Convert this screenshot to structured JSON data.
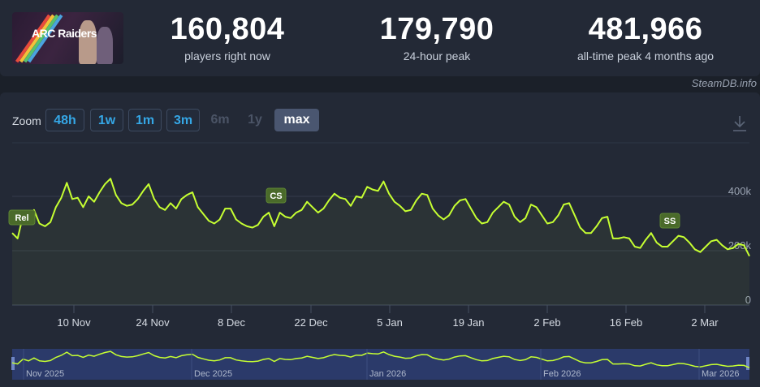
{
  "header": {
    "game_logo_text": "ARC Raiders",
    "stats": [
      {
        "value": "160,804",
        "label": "players right now"
      },
      {
        "value": "179,790",
        "label": "24-hour peak"
      },
      {
        "value": "481,966",
        "label": "all-time peak 4 months ago"
      }
    ],
    "credit": "SteamDB.info"
  },
  "zoom": {
    "label": "Zoom",
    "buttons": [
      {
        "label": "48h",
        "state": "enabled"
      },
      {
        "label": "1w",
        "state": "enabled"
      },
      {
        "label": "1m",
        "state": "enabled"
      },
      {
        "label": "3m",
        "state": "enabled"
      },
      {
        "label": "6m",
        "state": "disabled"
      },
      {
        "label": "1y",
        "state": "disabled"
      },
      {
        "label": "max",
        "state": "selected"
      }
    ],
    "download_icon": "download-icon"
  },
  "chart_data": {
    "type": "line",
    "title": "",
    "xlabel": "",
    "ylabel": "",
    "x_tick_labels": [
      "10 Nov",
      "24 Nov",
      "8 Dec",
      "22 Dec",
      "5 Jan",
      "19 Jan",
      "2 Feb",
      "16 Feb",
      "2 Mar"
    ],
    "y_tick_labels": [
      "0",
      "200k",
      "400k"
    ],
    "ylim": [
      0,
      560000
    ],
    "grid": true,
    "line_color": "#c6ff32",
    "series": [
      {
        "values": [
          265000,
          245000,
          330000,
          300000,
          350000,
          300000,
          290000,
          305000,
          360000,
          395000,
          450000,
          390000,
          395000,
          360000,
          400000,
          380000,
          415000,
          445000,
          465000,
          405000,
          375000,
          365000,
          370000,
          390000,
          420000,
          445000,
          390000,
          360000,
          350000,
          375000,
          355000,
          390000,
          405000,
          415000,
          360000,
          335000,
          310000,
          300000,
          315000,
          355000,
          355000,
          315000,
          300000,
          290000,
          285000,
          295000,
          325000,
          340000,
          290000,
          340000,
          325000,
          320000,
          340000,
          350000,
          380000,
          360000,
          340000,
          355000,
          385000,
          410000,
          395000,
          390000,
          365000,
          400000,
          395000,
          435000,
          425000,
          420000,
          455000,
          410000,
          380000,
          365000,
          345000,
          350000,
          385000,
          410000,
          405000,
          355000,
          330000,
          315000,
          330000,
          365000,
          385000,
          390000,
          355000,
          320000,
          300000,
          305000,
          340000,
          360000,
          380000,
          370000,
          325000,
          305000,
          320000,
          370000,
          360000,
          330000,
          300000,
          305000,
          330000,
          370000,
          375000,
          330000,
          285000,
          265000,
          265000,
          290000,
          320000,
          325000,
          245000,
          245000,
          250000,
          245000,
          215000,
          210000,
          240000,
          265000,
          230000,
          215000,
          215000,
          235000,
          255000,
          250000,
          230000,
          205000,
          195000,
          215000,
          235000,
          240000,
          220000,
          205000,
          210000,
          225000,
          220000,
          180000
        ]
      }
    ],
    "annotations": [
      {
        "label": "Rel",
        "date": "30 Oct"
      },
      {
        "label": "CS",
        "date": "18 Dec"
      },
      {
        "label": "SS",
        "date": "24 Feb"
      }
    ],
    "navigator": {
      "month_labels": [
        "Nov 2025",
        "Dec 2025",
        "Jan 2026",
        "Feb 2026",
        "Mar 2026"
      ]
    }
  }
}
